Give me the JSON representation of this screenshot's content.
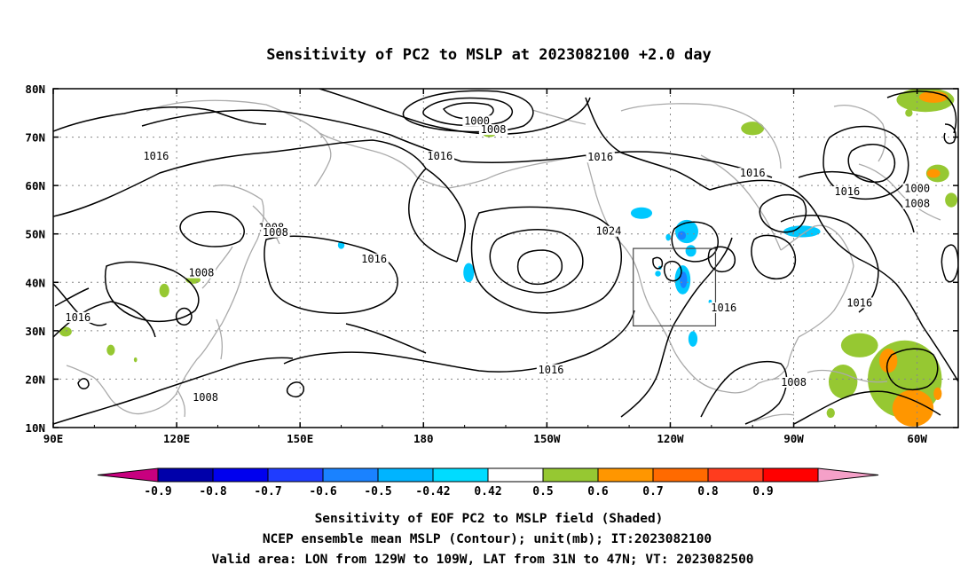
{
  "title": "Sensitivity of PC2 to MSLP at 2023082100 +2.0 day",
  "axes": {
    "lon_ticks": [
      "90E",
      "120E",
      "150E",
      "180",
      "150W",
      "120W",
      "90W",
      "60W"
    ],
    "lat_ticks": [
      "80N",
      "70N",
      "60N",
      "50N",
      "40N",
      "30N",
      "20N",
      "10N"
    ],
    "lon_range_deg_east": [
      90,
      310
    ],
    "lat_range_deg_north": [
      10,
      80
    ]
  },
  "contour_labels": [
    {
      "text": "1000",
      "lon": 193,
      "lat": 72.8
    },
    {
      "text": "1008",
      "lon": 197,
      "lat": 71.0
    },
    {
      "text": "1016",
      "lon": 115,
      "lat": 65.5
    },
    {
      "text": "1016",
      "lon": 184,
      "lat": 65.5
    },
    {
      "text": "1016",
      "lon": 223,
      "lat": 65.3
    },
    {
      "text": "1016",
      "lon": 260,
      "lat": 62.0
    },
    {
      "text": "1016",
      "lon": 283,
      "lat": 58.2
    },
    {
      "text": "1000",
      "lon": 300,
      "lat": 58.8
    },
    {
      "text": "1008",
      "lon": 300,
      "lat": 55.7
    },
    {
      "text": "1008",
      "lon": 143,
      "lat": 50.8
    },
    {
      "text": "1008",
      "lon": 144,
      "lat": 49.8
    },
    {
      "text": "1024",
      "lon": 225,
      "lat": 50.0
    },
    {
      "text": "1016",
      "lon": 168,
      "lat": 44.3
    },
    {
      "text": "1008",
      "lon": 126,
      "lat": 41.4
    },
    {
      "text": "1016",
      "lon": 253,
      "lat": 34.2
    },
    {
      "text": "1016",
      "lon": 286,
      "lat": 35.2
    },
    {
      "text": "1016",
      "lon": 96,
      "lat": 32.2
    },
    {
      "text": "1016",
      "lon": 211,
      "lat": 21.4
    },
    {
      "text": "1008",
      "lon": 270,
      "lat": 18.8
    },
    {
      "text": "1008",
      "lon": 127,
      "lat": 15.7
    }
  ],
  "valid_area_box": {
    "lon_west": 231,
    "lon_east": 251,
    "lat_south": 31,
    "lat_north": 47
  },
  "shaded_patches": [
    {
      "level": 0.5,
      "lon": 302,
      "lat": 77.7,
      "rx": 7,
      "ry": 2.5
    },
    {
      "level": 0.6,
      "lon": 304,
      "lat": 78.3,
      "rx": 3.5,
      "ry": 1.2
    },
    {
      "level": 0.5,
      "lon": 260,
      "lat": 71.8,
      "rx": 2.8,
      "ry": 1.4
    },
    {
      "level": 0.5,
      "lon": 298,
      "lat": 75.0,
      "rx": 0.9,
      "ry": 0.8
    },
    {
      "level": 0.5,
      "lon": 305,
      "lat": 62.5,
      "rx": 2.8,
      "ry": 1.8
    },
    {
      "level": 0.6,
      "lon": 304,
      "lat": 62.5,
      "rx": 1.6,
      "ry": 0.9
    },
    {
      "level": 0.5,
      "lon": 308.3,
      "lat": 57.0,
      "rx": 1.5,
      "ry": 1.5
    },
    {
      "level": 0.5,
      "lon": 196,
      "lat": 70.6,
      "rx": 1.5,
      "ry": 0.6
    },
    {
      "level": 0.5,
      "lon": 286,
      "lat": 27.0,
      "rx": 4.5,
      "ry": 2.5
    },
    {
      "level": 0.5,
      "lon": 297,
      "lat": 20.0,
      "rx": 9,
      "ry": 8
    },
    {
      "level": 0.6,
      "lon": 293,
      "lat": 23.8,
      "rx": 2.2,
      "ry": 2.5
    },
    {
      "level": 0.6,
      "lon": 299,
      "lat": 14.0,
      "rx": 5,
      "ry": 3.8
    },
    {
      "level": 0.6,
      "lon": 305,
      "lat": 17.0,
      "rx": 1,
      "ry": 1.3
    },
    {
      "level": 0.5,
      "lon": 282,
      "lat": 19.5,
      "rx": 3.5,
      "ry": 3.5
    },
    {
      "level": 0.5,
      "lon": 279,
      "lat": 13.0,
      "rx": 1,
      "ry": 1
    },
    {
      "level": 0.5,
      "lon": 124,
      "lat": 40.5,
      "rx": 1.8,
      "ry": 0.8
    },
    {
      "level": 0.5,
      "lon": 117,
      "lat": 38.3,
      "rx": 1.2,
      "ry": 1.4
    },
    {
      "level": 0.5,
      "lon": 93,
      "lat": 29.8,
      "rx": 1.5,
      "ry": 1
    },
    {
      "level": 0.5,
      "lon": 104,
      "lat": 26.0,
      "rx": 1,
      "ry": 1.1
    },
    {
      "level": 0.5,
      "lon": 110,
      "lat": 24.0,
      "rx": 0.4,
      "ry": 0.5
    },
    {
      "level": -0.42,
      "lon": 233,
      "lat": 54.3,
      "rx": 2.6,
      "ry": 1.2
    },
    {
      "level": -0.42,
      "lon": 244,
      "lat": 50.5,
      "rx": 2.8,
      "ry": 2.4
    },
    {
      "level": -0.5,
      "lon": 242.8,
      "lat": 49.7,
      "rx": 1,
      "ry": 0.9
    },
    {
      "level": -0.42,
      "lon": 245,
      "lat": 46.5,
      "rx": 1.3,
      "ry": 1.2
    },
    {
      "level": -0.42,
      "lon": 243,
      "lat": 40.5,
      "rx": 1.9,
      "ry": 3.0
    },
    {
      "level": -0.5,
      "lon": 243.2,
      "lat": 40.5,
      "rx": 0.9,
      "ry": 1.7
    },
    {
      "level": -0.42,
      "lon": 239.5,
      "lat": 49.3,
      "rx": 0.6,
      "ry": 0.7
    },
    {
      "level": -0.42,
      "lon": 237,
      "lat": 41.8,
      "rx": 0.7,
      "ry": 0.6
    },
    {
      "level": -0.42,
      "lon": 245.5,
      "lat": 28.3,
      "rx": 1.1,
      "ry": 1.6
    },
    {
      "level": -0.42,
      "lon": 272,
      "lat": 50.5,
      "rx": 4.5,
      "ry": 1.2
    },
    {
      "level": -0.42,
      "lon": 191,
      "lat": 42.0,
      "rx": 1.3,
      "ry": 2.0
    },
    {
      "level": -0.42,
      "lon": 160,
      "lat": 47.7,
      "rx": 0.8,
      "ry": 0.8
    },
    {
      "level": -0.42,
      "lon": 237.5,
      "lat": 43.0,
      "rx": 0.4,
      "ry": 0.4
    },
    {
      "level": -0.42,
      "lon": 249.7,
      "lat": 36.0,
      "rx": 0.4,
      "ry": 0.4
    }
  ],
  "colorbar": {
    "labels": [
      "-0.9",
      "-0.8",
      "-0.7",
      "-0.6",
      "-0.5",
      "-0.42",
      "0.42",
      "0.5",
      "0.6",
      "0.7",
      "0.8",
      "0.9"
    ],
    "colors": [
      "#c8007f",
      "#0000aa",
      "#0000ee",
      "#1f3cff",
      "#1a82ff",
      "#00b4ff",
      "#00dcff",
      "#ffffff",
      "#96c832",
      "#ff9600",
      "#ff6a00",
      "#ff3c1e",
      "#ff0000",
      "#f5a0c8"
    ],
    "color_levels": {
      "0.5": "#96c832",
      "0.6": "#ff9600",
      "-0.42": "#00c8ff",
      "-0.5": "#1a82ff"
    }
  },
  "footer": {
    "line1": "Sensitivity of EOF PC2 to MSLP field (Shaded)",
    "line2": "NCEP ensemble mean MSLP (Contour); unit(mb); IT:2023082100",
    "line3": "Valid area: LON from 129W to 109W, LAT from 31N to 47N; VT: 2023082500"
  }
}
